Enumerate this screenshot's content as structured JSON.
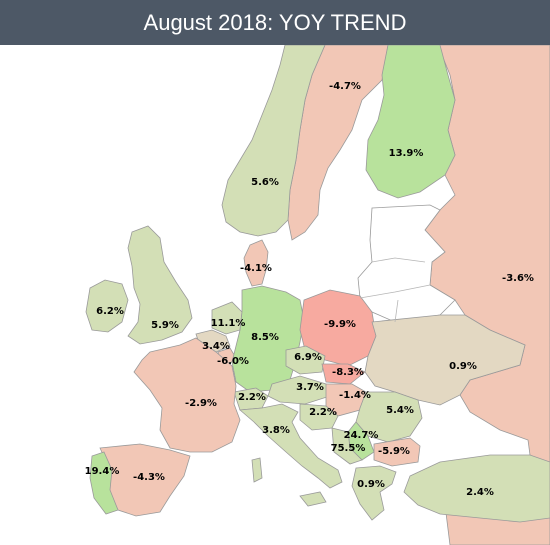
{
  "title": "August 2018: YOY TREND",
  "colors": {
    "header_bg": "#4d5866",
    "positive_strong": "#b8e29c",
    "positive_light": "#d3dfb6",
    "neutral": "#e3d8c2",
    "negative_light": "#f2c7b6",
    "negative_strong": "#f7aaa0",
    "no_data": "#ffffff"
  },
  "countries": [
    {
      "id": "finland",
      "value": "13.9%"
    },
    {
      "id": "sweden",
      "value": "-4.7%"
    },
    {
      "id": "norway",
      "value": "5.6%"
    },
    {
      "id": "russia",
      "value": "-3.6%"
    },
    {
      "id": "denmark",
      "value": "-4.1%"
    },
    {
      "id": "ireland",
      "value": "6.2%"
    },
    {
      "id": "uk",
      "value": "5.9%"
    },
    {
      "id": "netherlands",
      "value": "11.1%"
    },
    {
      "id": "belgium",
      "value": "3.4%"
    },
    {
      "id": "luxembourg",
      "value": "-6.0%"
    },
    {
      "id": "germany",
      "value": "8.5%"
    },
    {
      "id": "poland",
      "value": "-9.9%"
    },
    {
      "id": "ukraine",
      "value": "0.9%"
    },
    {
      "id": "czechia",
      "value": "6.9%"
    },
    {
      "id": "slovakia",
      "value": "-8.3%"
    },
    {
      "id": "austria",
      "value": "3.7%"
    },
    {
      "id": "hungary",
      "value": "-1.4%"
    },
    {
      "id": "switzerland",
      "value": "2.2%"
    },
    {
      "id": "france",
      "value": "-2.9%"
    },
    {
      "id": "slovenia",
      "value": "2.2%"
    },
    {
      "id": "romania",
      "value": "5.4%"
    },
    {
      "id": "italy",
      "value": "3.8%"
    },
    {
      "id": "serbia",
      "value": "24.7%"
    },
    {
      "id": "montenegro",
      "value": "75.5%"
    },
    {
      "id": "bulgaria",
      "value": "-5.9%"
    },
    {
      "id": "portugal",
      "value": "19.4%"
    },
    {
      "id": "spain",
      "value": "-4.3%"
    },
    {
      "id": "greece",
      "value": "0.9%"
    },
    {
      "id": "turkey",
      "value": "2.4%"
    }
  ]
}
